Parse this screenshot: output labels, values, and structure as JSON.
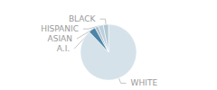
{
  "chart_data": {
    "type": "pie",
    "categories": [
      "WHITE",
      "A.I.",
      "ASIAN",
      "HISPANIC",
      "BLACK"
    ],
    "values": [
      88,
      4,
      2,
      3,
      3
    ],
    "colors": [
      "#d5e2ea",
      "#4d84a8",
      "#aabfcc",
      "#bccfda",
      "#b0c8d4"
    ]
  }
}
